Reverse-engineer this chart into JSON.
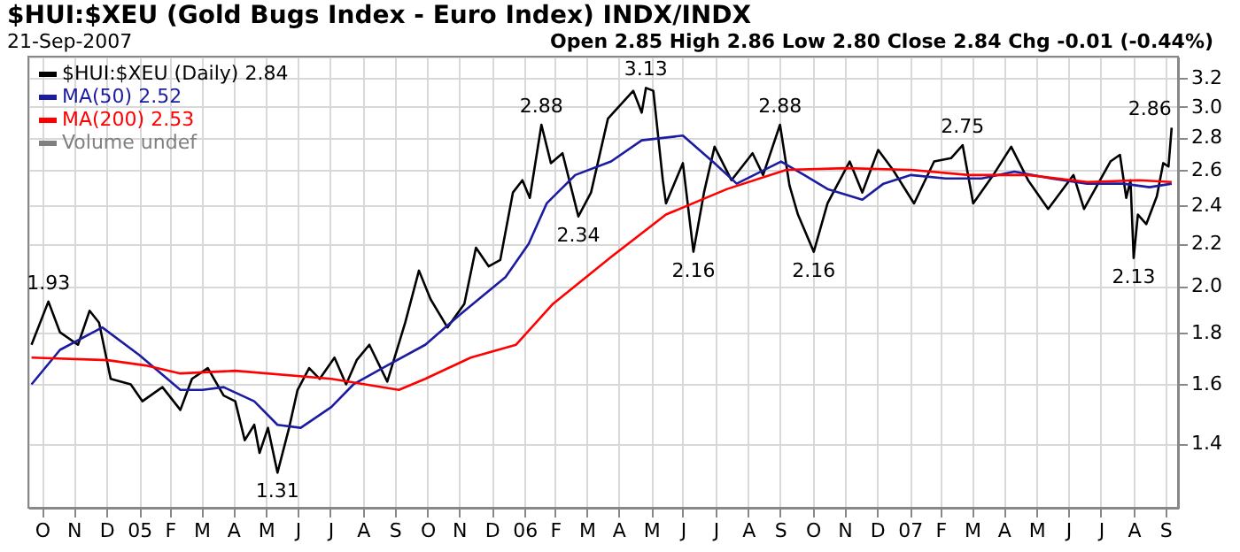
{
  "chart_data": {
    "type": "line",
    "title": "$HUI:$XEU (Gold Bugs Index - Euro Index) INDX/INDX",
    "subtitle": "21-Sep-2007",
    "annotations": [
      "Open 2.85  High 2.86  Low 2.80  Close 2.84  Chg -0.01 (-0.44%)",
      "Volume undef",
      {
        "text": "1.93",
        "x": "2004-10-22",
        "y": 1.93
      },
      {
        "text": "1.31",
        "x": "2005-05-27",
        "y": 1.31
      },
      {
        "text": "2.88",
        "x": "2006-02-01",
        "y": 2.88
      },
      {
        "text": "2.34",
        "x": "2006-03-08",
        "y": 2.34
      },
      {
        "text": "3.13",
        "x": "2006-05-11",
        "y": 3.13
      },
      {
        "text": "2.16",
        "x": "2006-06-25",
        "y": 2.16
      },
      {
        "text": "2.88",
        "x": "2006-09-15",
        "y": 2.88
      },
      {
        "text": "2.16",
        "x": "2006-10-17",
        "y": 2.16
      },
      {
        "text": "2.75",
        "x": "2007-03-07",
        "y": 2.75
      },
      {
        "text": "2.13",
        "x": "2007-08-16",
        "y": 2.13
      },
      {
        "text": "2.86",
        "x": "2007-09-21",
        "y": 2.86
      }
    ],
    "series": [
      {
        "name": "$HUI:$XEU (Daily) 2.84",
        "type": "line",
        "color": "#000000",
        "x": [
          "2004-10-06",
          "2004-10-22",
          "2004-11-02",
          "2004-11-19",
          "2004-11-30",
          "2004-12-09",
          "2004-12-20",
          "2005-01-08",
          "2005-01-19",
          "2005-02-07",
          "2005-02-24",
          "2005-03-07",
          "2005-03-22",
          "2005-04-06",
          "2005-04-17",
          "2005-04-26",
          "2005-05-05",
          "2005-05-10",
          "2005-05-18",
          "2005-05-27",
          "2005-06-07",
          "2005-06-15",
          "2005-06-26",
          "2005-07-06",
          "2005-07-20",
          "2005-07-31",
          "2005-08-10",
          "2005-08-22",
          "2005-09-08",
          "2005-09-25",
          "2005-10-08",
          "2005-10-19",
          "2005-11-04",
          "2005-11-20",
          "2005-12-01",
          "2005-12-13",
          "2005-12-24",
          "2006-01-05",
          "2006-01-14",
          "2006-01-21",
          "2006-02-01",
          "2006-02-10",
          "2006-02-21",
          "2006-03-08",
          "2006-03-20",
          "2006-04-05",
          "2006-04-29",
          "2006-05-07",
          "2006-05-11",
          "2006-05-18",
          "2006-05-27",
          "2006-05-30",
          "2006-06-15",
          "2006-06-25",
          "2006-07-05",
          "2006-07-15",
          "2006-07-31",
          "2006-08-20",
          "2006-08-30",
          "2006-09-15",
          "2006-09-24",
          "2006-10-02",
          "2006-10-17",
          "2006-10-30",
          "2006-11-20",
          "2006-12-02",
          "2006-12-17",
          "2006-12-31",
          "2007-01-20",
          "2007-02-08",
          "2007-02-24",
          "2007-03-07",
          "2007-03-17",
          "2007-04-05",
          "2007-04-22",
          "2007-05-08",
          "2007-05-27",
          "2007-06-20",
          "2007-06-30",
          "2007-07-25",
          "2007-08-03",
          "2007-08-09",
          "2007-08-13",
          "2007-08-16",
          "2007-08-20",
          "2007-08-28",
          "2007-09-07",
          "2007-09-13",
          "2007-09-18",
          "2007-09-21"
        ],
        "values": [
          1.75,
          1.93,
          1.8,
          1.75,
          1.89,
          1.84,
          1.62,
          1.6,
          1.54,
          1.59,
          1.51,
          1.62,
          1.66,
          1.56,
          1.54,
          1.41,
          1.46,
          1.37,
          1.45,
          1.31,
          1.45,
          1.58,
          1.66,
          1.62,
          1.7,
          1.6,
          1.69,
          1.75,
          1.61,
          1.84,
          2.07,
          1.94,
          1.82,
          1.92,
          2.18,
          2.09,
          2.12,
          2.47,
          2.54,
          2.44,
          2.88,
          2.64,
          2.7,
          2.34,
          2.47,
          2.92,
          3.11,
          2.96,
          3.13,
          3.11,
          2.54,
          2.41,
          2.64,
          2.16,
          2.47,
          2.74,
          2.54,
          2.7,
          2.57,
          2.88,
          2.51,
          2.35,
          2.16,
          2.41,
          2.65,
          2.47,
          2.72,
          2.6,
          2.41,
          2.65,
          2.67,
          2.75,
          2.41,
          2.57,
          2.74,
          2.54,
          2.38,
          2.57,
          2.38,
          2.65,
          2.69,
          2.44,
          2.54,
          2.13,
          2.35,
          2.3,
          2.45,
          2.64,
          2.62,
          2.86
        ]
      },
      {
        "name": "MA(50) 2.52",
        "type": "line",
        "color": "#1c1ca0",
        "x": [
          "2004-10-06",
          "2004-11-02",
          "2004-12-12",
          "2005-01-16",
          "2005-02-24",
          "2005-03-17",
          "2005-04-06",
          "2005-05-05",
          "2005-05-27",
          "2005-06-18",
          "2005-07-17",
          "2005-08-07",
          "2005-09-08",
          "2005-10-14",
          "2005-11-15",
          "2005-12-29",
          "2006-01-20",
          "2006-02-06",
          "2006-03-05",
          "2006-04-08",
          "2006-05-07",
          "2006-06-15",
          "2006-07-15",
          "2006-08-05",
          "2006-09-16",
          "2006-10-08",
          "2006-10-30",
          "2006-12-02",
          "2006-12-22",
          "2007-01-17",
          "2007-02-19",
          "2007-03-25",
          "2007-04-25",
          "2007-05-30",
          "2007-07-03",
          "2007-08-06",
          "2007-08-31",
          "2007-09-21"
        ],
        "values": [
          1.6,
          1.73,
          1.82,
          1.71,
          1.58,
          1.58,
          1.59,
          1.54,
          1.46,
          1.45,
          1.52,
          1.6,
          1.67,
          1.75,
          1.87,
          2.04,
          2.2,
          2.41,
          2.57,
          2.65,
          2.78,
          2.81,
          2.64,
          2.52,
          2.65,
          2.57,
          2.49,
          2.43,
          2.52,
          2.57,
          2.55,
          2.55,
          2.59,
          2.55,
          2.52,
          2.52,
          2.5,
          2.52
        ]
      },
      {
        "name": "MA(200) 2.53",
        "type": "line",
        "color": "#ff0000",
        "x": [
          "2004-10-06",
          "2004-12-17",
          "2005-01-22",
          "2005-02-24",
          "2005-04-17",
          "2005-07-17",
          "2005-09-19",
          "2005-10-14",
          "2005-11-26",
          "2006-01-08",
          "2006-02-12",
          "2006-04-08",
          "2006-05-30",
          "2006-07-27",
          "2006-09-21",
          "2006-11-17",
          "2007-01-17",
          "2007-03-13",
          "2007-05-08",
          "2007-07-03",
          "2007-08-21",
          "2007-09-21"
        ],
        "values": [
          1.7,
          1.69,
          1.67,
          1.64,
          1.65,
          1.62,
          1.58,
          1.62,
          1.7,
          1.75,
          1.92,
          2.135,
          2.35,
          2.49,
          2.6,
          2.61,
          2.6,
          2.57,
          2.57,
          2.53,
          2.54,
          2.53
        ]
      }
    ],
    "xlim": [
      "2004-10-03",
      "2007-09-27"
    ],
    "xticks": [
      {
        "value": "2004-10-16",
        "label": "O"
      },
      {
        "value": "2004-11-15",
        "label": "N"
      },
      {
        "value": "2004-12-16",
        "label": "D"
      },
      {
        "value": "2005-01-16",
        "label": "05"
      },
      {
        "value": "2005-02-14",
        "label": "F"
      },
      {
        "value": "2005-03-16",
        "label": "M"
      },
      {
        "value": "2005-04-15",
        "label": "A"
      },
      {
        "value": "2005-05-16",
        "label": "M"
      },
      {
        "value": "2005-06-15",
        "label": "J"
      },
      {
        "value": "2005-07-16",
        "label": "J"
      },
      {
        "value": "2005-08-16",
        "label": "A"
      },
      {
        "value": "2005-09-15",
        "label": "S"
      },
      {
        "value": "2005-10-16",
        "label": "O"
      },
      {
        "value": "2005-11-15",
        "label": "N"
      },
      {
        "value": "2005-12-16",
        "label": "D"
      },
      {
        "value": "2006-01-16",
        "label": "06"
      },
      {
        "value": "2006-02-14",
        "label": "F"
      },
      {
        "value": "2006-03-16",
        "label": "M"
      },
      {
        "value": "2006-04-15",
        "label": "A"
      },
      {
        "value": "2006-05-16",
        "label": "M"
      },
      {
        "value": "2006-06-15",
        "label": "J"
      },
      {
        "value": "2006-07-16",
        "label": "J"
      },
      {
        "value": "2006-08-16",
        "label": "A"
      },
      {
        "value": "2006-09-15",
        "label": "S"
      },
      {
        "value": "2006-10-16",
        "label": "O"
      },
      {
        "value": "2006-11-15",
        "label": "N"
      },
      {
        "value": "2006-12-16",
        "label": "D"
      },
      {
        "value": "2007-01-16",
        "label": "07"
      },
      {
        "value": "2007-02-14",
        "label": "F"
      },
      {
        "value": "2007-03-16",
        "label": "M"
      },
      {
        "value": "2007-04-15",
        "label": "A"
      },
      {
        "value": "2007-05-16",
        "label": "M"
      },
      {
        "value": "2007-06-15",
        "label": "J"
      },
      {
        "value": "2007-07-16",
        "label": "J"
      },
      {
        "value": "2007-08-16",
        "label": "A"
      },
      {
        "value": "2007-09-15",
        "label": "S"
      }
    ],
    "ylim": [
      1.21,
      3.36
    ],
    "yticks": [
      1.4,
      1.6,
      1.8,
      {
        "value": 2,
        "label": "2.0"
      },
      2.2,
      2.4,
      2.6,
      2.8,
      {
        "value": 3,
        "label": "3.0"
      },
      3.2
    ],
    "log": true,
    "grid": true,
    "legend": "top left"
  }
}
